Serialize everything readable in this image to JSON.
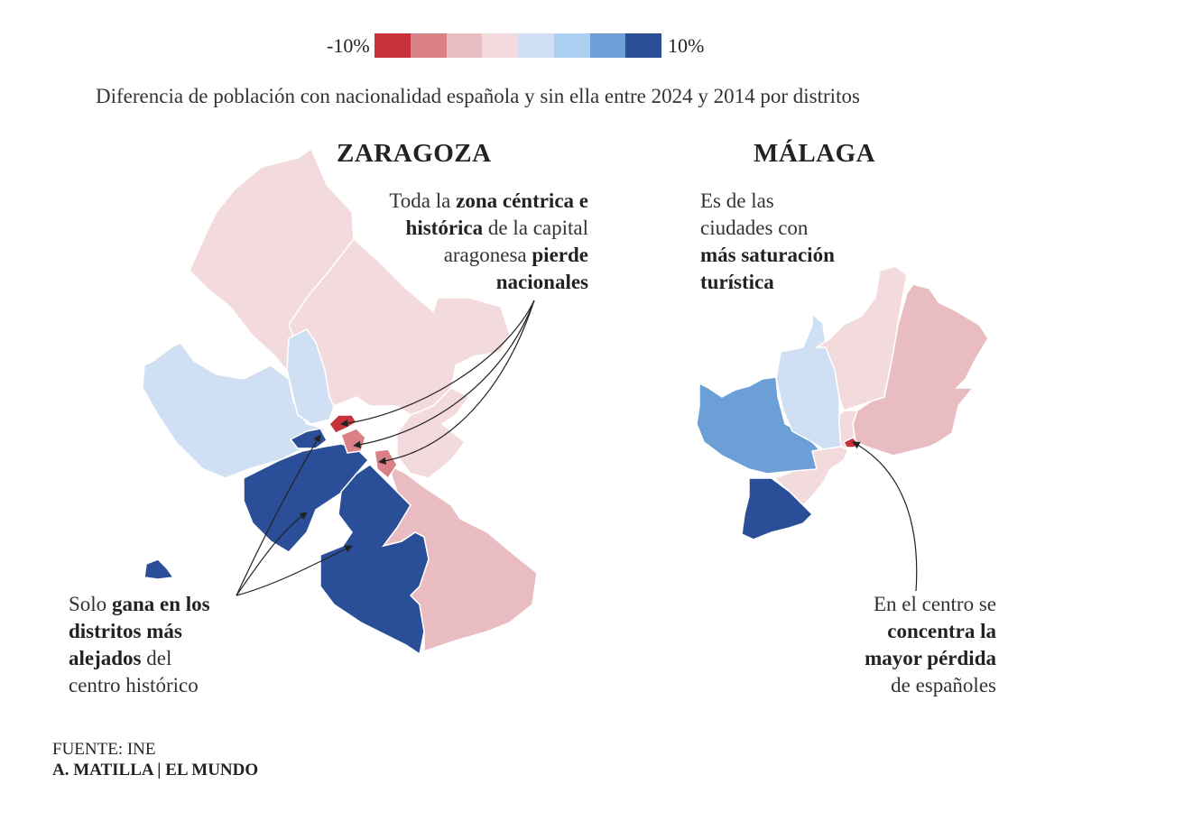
{
  "legend": {
    "min_label": "-10%",
    "max_label": "10%",
    "colors": [
      "#c8323b",
      "#d98187",
      "#e8bcc0",
      "#f2dadd",
      "#cfe0f4",
      "#acd0f1",
      "#6b9fd5",
      "#2a4e98"
    ]
  },
  "subtitle": "Diferencia de población con nacionalidad española y sin ella entre 2024 y 2014 por distritos",
  "zaragoza": {
    "title": "ZARAGOZA",
    "annotation_center": {
      "l1a": "Toda la ",
      "l1b": "zona céntrica e",
      "l2a": "histórica",
      "l2b": " de la capital",
      "l3a": "aragonesa ",
      "l3b": "pierde",
      "l4": "nacionales"
    },
    "annotation_outer": {
      "l1a": "Solo ",
      "l1b": "gana en los",
      "l2": "distritos más",
      "l3a": "alejados",
      "l3b": " del",
      "l4": "centro histórico"
    }
  },
  "malaga": {
    "title": "MÁLAGA",
    "annotation_tourism": {
      "l1": "Es de las",
      "l2": "ciudades con",
      "l3": "más saturación",
      "l4": "turística"
    },
    "annotation_center": {
      "l1": "En el centro se",
      "l2": "concentra la",
      "l3": "mayor pérdida",
      "l4": "de españoles"
    }
  },
  "source": {
    "line1": "FUENTE: INE",
    "line2": "A. MATILLA | EL MUNDO"
  }
}
